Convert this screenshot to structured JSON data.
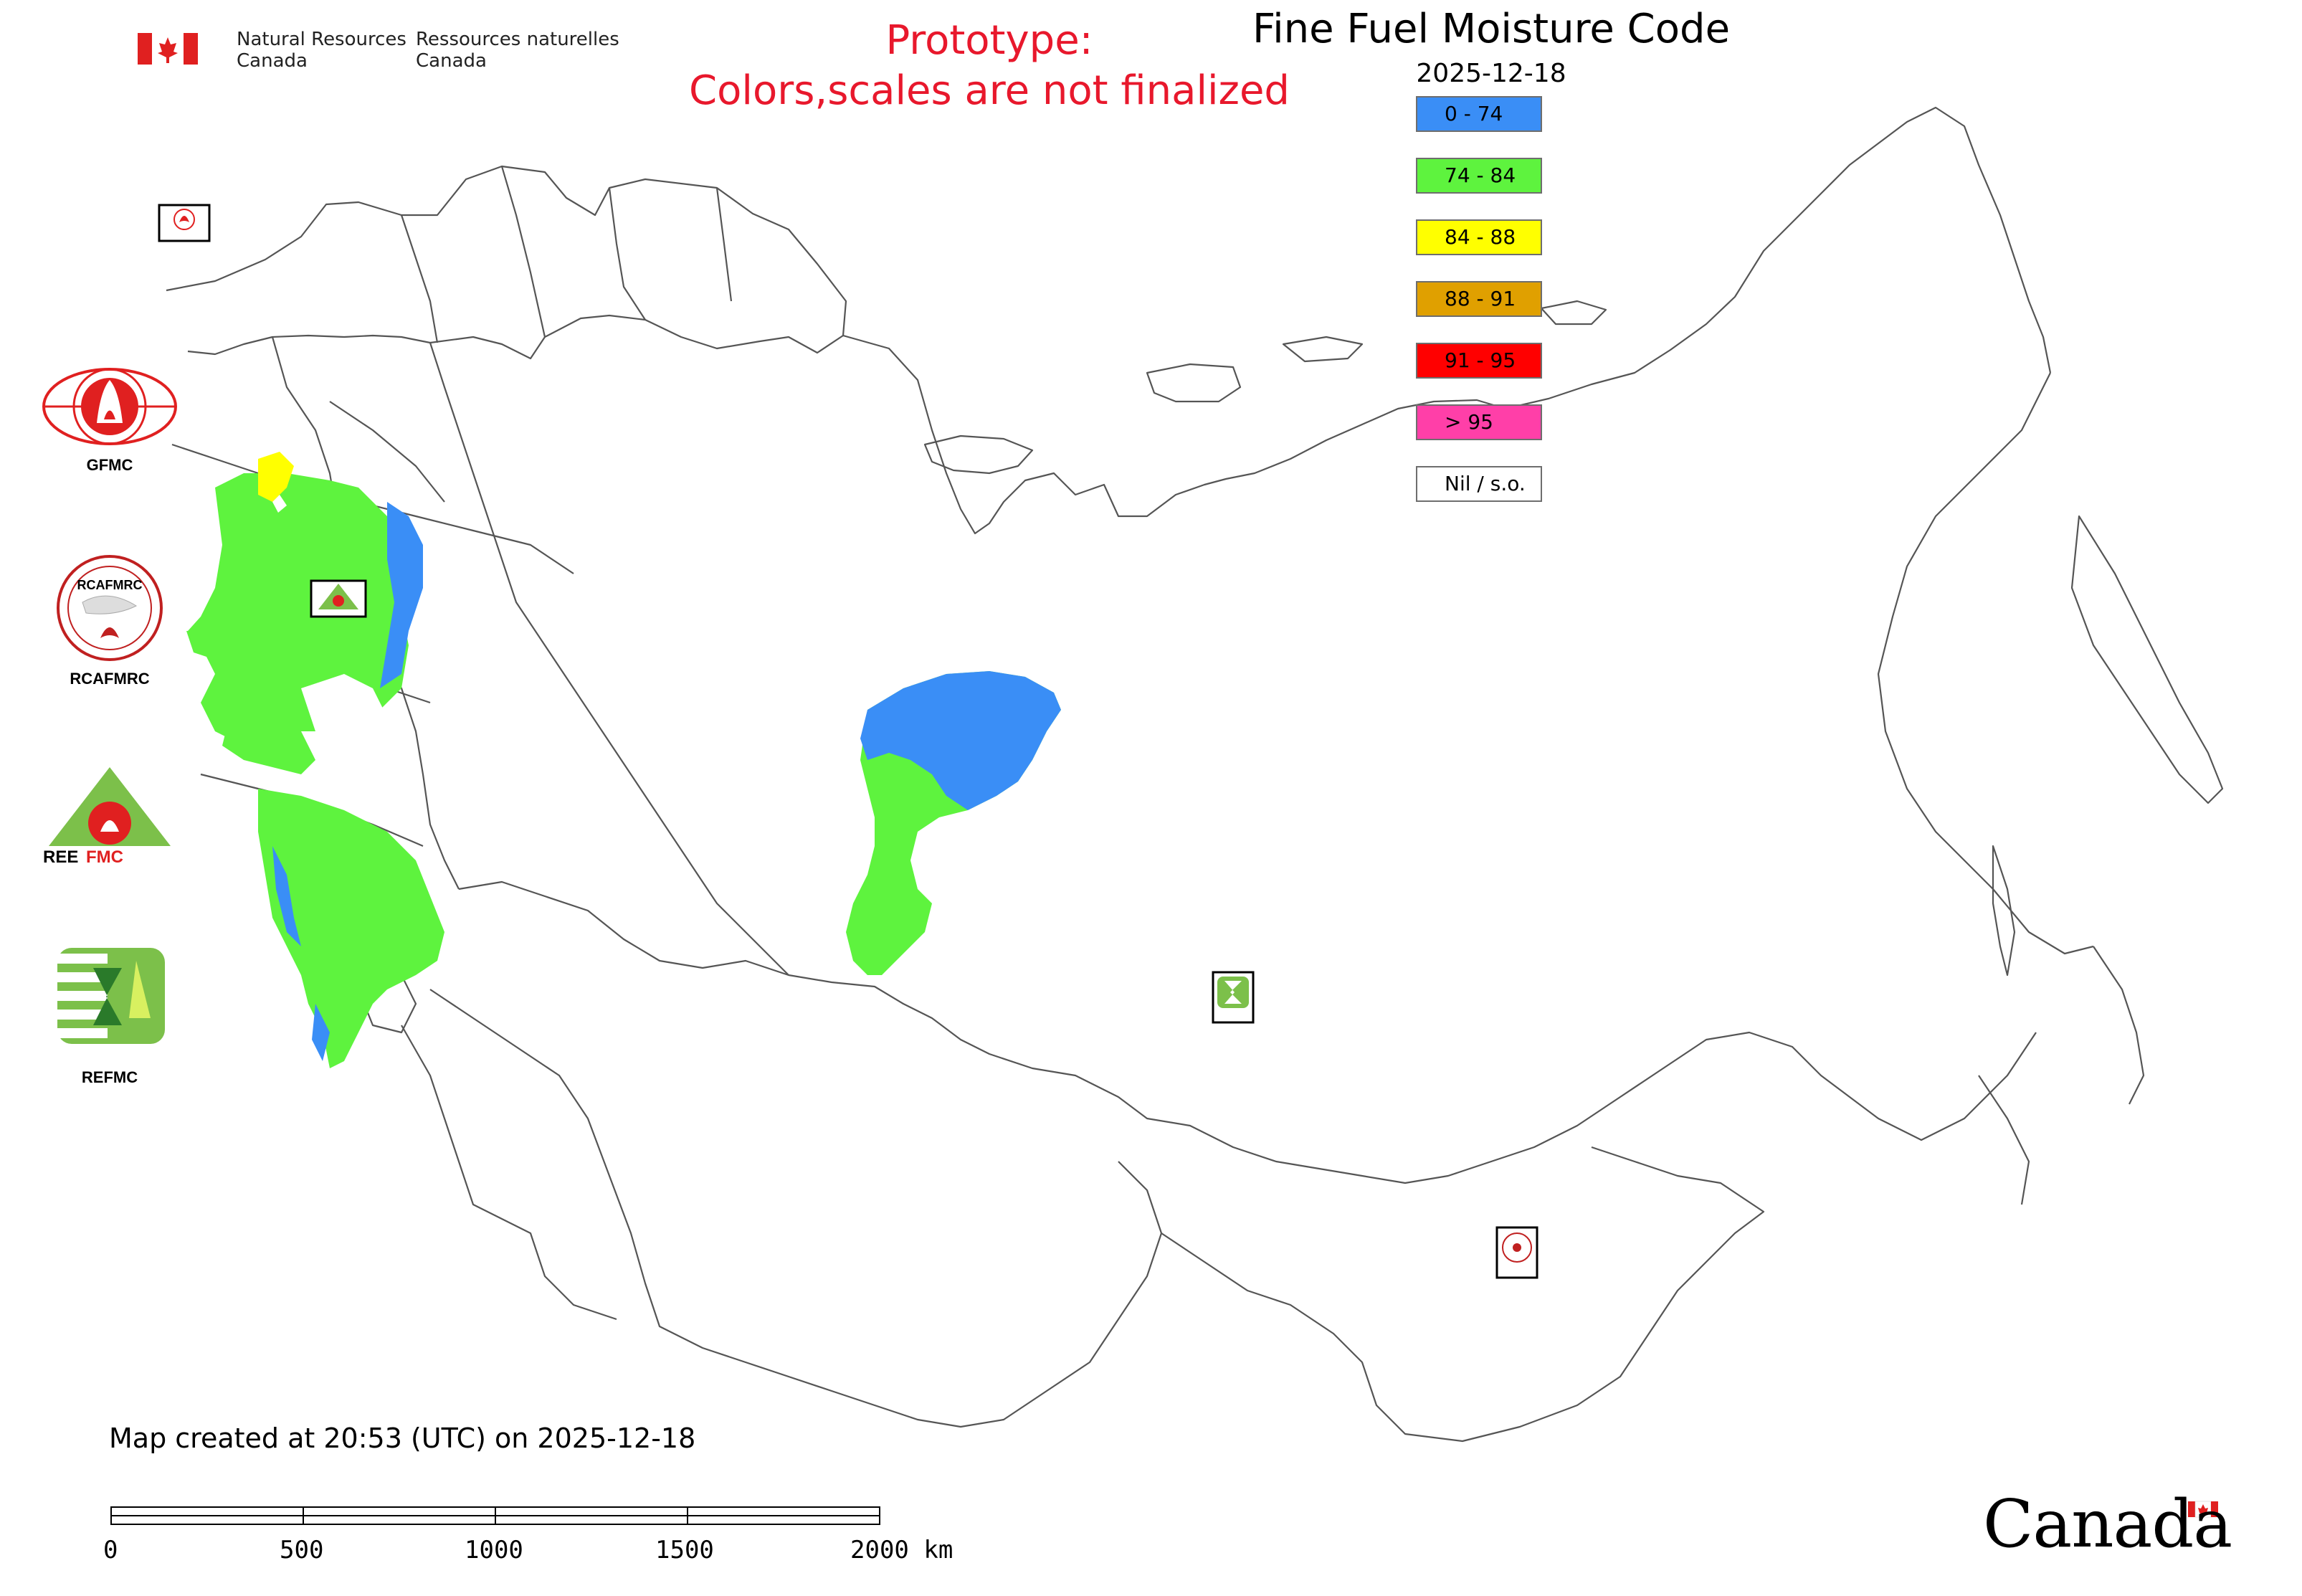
{
  "header": {
    "dept_en": [
      "Natural Resources",
      "Canada"
    ],
    "dept_fr": [
      "Ressources naturelles",
      "Canada"
    ],
    "prototype_lines": [
      "Prototype:",
      "Colors,scales are not finalized"
    ],
    "title": "Fine Fuel Moisture Code",
    "date": "2025-12-18"
  },
  "legend": [
    {
      "label": "0 - 74",
      "color": "#3a8ef6"
    },
    {
      "label": "74 - 84",
      "color": "#5ef33e"
    },
    {
      "label": "84 - 88",
      "color": "#ffff00"
    },
    {
      "label": "88 - 91",
      "color": "#e0a000"
    },
    {
      "label": "91 - 95",
      "color": "#ff0000"
    },
    {
      "label": "> 95",
      "color": "#ff3fa8"
    },
    {
      "label": "Nil / s.o.",
      "color": "#ffffff"
    }
  ],
  "organizations": [
    {
      "name": "GFMC",
      "icon": "gfmc-logo"
    },
    {
      "name": "RCAFMRC",
      "icon": "rcafmrc-logo"
    },
    {
      "name": "REEFMC",
      "icon": "reefmc-logo"
    },
    {
      "name": "REFMC",
      "icon": "refmc-logo"
    }
  ],
  "map_markers": [
    "GFMC",
    "REEFMC",
    "REFMC",
    "RCAFMRC"
  ],
  "footer": {
    "created_text": "Map created at 20:53 (UTC) on 2025-12-18",
    "scale_labels": [
      "0",
      "500",
      "1000",
      "1500",
      "2000 km"
    ],
    "wordmark": "Canada"
  }
}
